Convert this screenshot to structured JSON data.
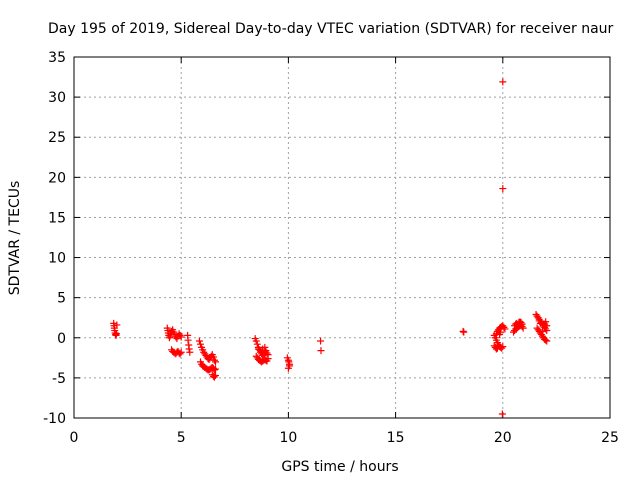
{
  "chart_data": {
    "type": "scatter",
    "title": "Day 195 of 2019, Sidereal Day-to-day VTEC variation (SDTVAR) for receiver naur",
    "xlabel": "GPS time / hours",
    "ylabel": "SDTVAR / TECUs",
    "xlim": [
      0,
      25
    ],
    "ylim": [
      -10,
      35
    ],
    "xticks": [
      0,
      5,
      10,
      15,
      20,
      25
    ],
    "yticks": [
      -10,
      -5,
      0,
      5,
      10,
      15,
      20,
      25,
      30,
      35
    ],
    "xtick_labels": [
      "0",
      "5",
      "10",
      "15",
      "20",
      "25"
    ],
    "ytick_labels": [
      "-10",
      "-5",
      "0",
      "5",
      "10",
      "15",
      "20",
      "25",
      "30",
      "35"
    ],
    "grid": true,
    "marker": "+",
    "series": [
      {
        "name": "SDTVAR",
        "color": "#ff0000",
        "points": [
          [
            1.85,
            1.8
          ],
          [
            1.87,
            1.5
          ],
          [
            1.88,
            1.2
          ],
          [
            1.9,
            0.9
          ],
          [
            1.92,
            0.6
          ],
          [
            1.94,
            0.4
          ],
          [
            1.96,
            0.3
          ],
          [
            1.98,
            0.5
          ],
          [
            2.0,
            1.6
          ],
          [
            4.35,
            1.2
          ],
          [
            4.38,
            0.9
          ],
          [
            4.4,
            0.6
          ],
          [
            4.42,
            0.3
          ],
          [
            4.45,
            0.0
          ],
          [
            4.48,
            0.2
          ],
          [
            4.5,
            0.5
          ],
          [
            4.55,
            0.8
          ],
          [
            4.6,
            1.0
          ],
          [
            4.65,
            0.7
          ],
          [
            4.7,
            0.4
          ],
          [
            4.75,
            0.1
          ],
          [
            4.8,
            -0.1
          ],
          [
            4.85,
            0.2
          ],
          [
            4.9,
            0.5
          ],
          [
            4.95,
            0.3
          ],
          [
            5.0,
            0.1
          ],
          [
            4.55,
            -1.5
          ],
          [
            4.6,
            -1.7
          ],
          [
            4.65,
            -1.8
          ],
          [
            4.7,
            -1.9
          ],
          [
            4.75,
            -2.0
          ],
          [
            4.8,
            -1.8
          ],
          [
            4.85,
            -1.7
          ],
          [
            4.9,
            -1.9
          ],
          [
            4.95,
            -2.0
          ],
          [
            5.0,
            -1.8
          ],
          [
            5.3,
            0.3
          ],
          [
            5.32,
            -0.3
          ],
          [
            5.35,
            -0.9
          ],
          [
            5.37,
            -1.4
          ],
          [
            5.4,
            -1.8
          ],
          [
            5.85,
            -0.4
          ],
          [
            5.9,
            -0.8
          ],
          [
            5.95,
            -1.2
          ],
          [
            6.0,
            -1.5
          ],
          [
            6.05,
            -1.8
          ],
          [
            6.1,
            -2.0
          ],
          [
            6.15,
            -2.2
          ],
          [
            6.2,
            -2.4
          ],
          [
            6.25,
            -2.6
          ],
          [
            6.3,
            -2.7
          ],
          [
            6.35,
            -2.5
          ],
          [
            6.4,
            -2.3
          ],
          [
            6.45,
            -2.1
          ],
          [
            6.5,
            -2.4
          ],
          [
            6.55,
            -2.8
          ],
          [
            6.6,
            -3.0
          ],
          [
            5.9,
            -3.0
          ],
          [
            5.95,
            -3.3
          ],
          [
            6.0,
            -3.5
          ],
          [
            6.05,
            -3.6
          ],
          [
            6.1,
            -3.7
          ],
          [
            6.15,
            -3.8
          ],
          [
            6.2,
            -3.9
          ],
          [
            6.25,
            -4.0
          ],
          [
            6.3,
            -4.0
          ],
          [
            6.35,
            -3.9
          ],
          [
            6.4,
            -3.8
          ],
          [
            6.45,
            -3.7
          ],
          [
            6.5,
            -3.8
          ],
          [
            6.55,
            -4.0
          ],
          [
            6.6,
            -3.9
          ],
          [
            6.45,
            -4.6
          ],
          [
            6.5,
            -4.8
          ],
          [
            6.55,
            -4.9
          ],
          [
            6.6,
            -4.7
          ],
          [
            8.45,
            -0.1
          ],
          [
            8.5,
            -0.4
          ],
          [
            8.55,
            -0.8
          ],
          [
            8.6,
            -1.2
          ],
          [
            8.65,
            -1.5
          ],
          [
            8.7,
            -1.8
          ],
          [
            8.75,
            -2.0
          ],
          [
            8.8,
            -2.2
          ],
          [
            8.85,
            -2.0
          ],
          [
            8.9,
            -1.8
          ],
          [
            8.95,
            -1.6
          ],
          [
            9.0,
            -1.9
          ],
          [
            9.05,
            -2.1
          ],
          [
            8.5,
            -2.3
          ],
          [
            8.55,
            -2.5
          ],
          [
            8.6,
            -2.7
          ],
          [
            8.65,
            -2.8
          ],
          [
            8.7,
            -2.9
          ],
          [
            8.75,
            -3.0
          ],
          [
            8.8,
            -2.9
          ],
          [
            8.85,
            -2.8
          ],
          [
            8.9,
            -2.7
          ],
          [
            8.95,
            -2.8
          ],
          [
            9.0,
            -2.9
          ],
          [
            9.05,
            -2.6
          ],
          [
            8.6,
            -1.4
          ],
          [
            8.7,
            -1.6
          ],
          [
            8.8,
            -1.4
          ],
          [
            8.9,
            -1.2
          ],
          [
            9.95,
            -2.5
          ],
          [
            10.0,
            -2.8
          ],
          [
            10.02,
            -3.0
          ],
          [
            10.05,
            -3.3
          ],
          [
            10.0,
            -3.8
          ],
          [
            10.05,
            -3.5
          ],
          [
            11.5,
            -0.4
          ],
          [
            11.52,
            -1.6
          ],
          [
            18.15,
            0.8
          ],
          [
            18.18,
            0.7
          ],
          [
            19.6,
            0.3
          ],
          [
            19.65,
            0.0
          ],
          [
            19.7,
            -0.3
          ],
          [
            19.75,
            -0.6
          ],
          [
            19.8,
            -0.9
          ],
          [
            19.85,
            -1.1
          ],
          [
            19.9,
            -1.2
          ],
          [
            19.95,
            -1.3
          ],
          [
            20.0,
            -1.1
          ],
          [
            19.6,
            -1.0
          ],
          [
            19.65,
            -1.2
          ],
          [
            19.7,
            -1.4
          ],
          [
            19.75,
            -1.3
          ],
          [
            19.7,
            0.5
          ],
          [
            19.75,
            0.8
          ],
          [
            19.8,
            1.0
          ],
          [
            19.85,
            1.2
          ],
          [
            19.9,
            1.3
          ],
          [
            19.95,
            1.4
          ],
          [
            20.0,
            1.5
          ],
          [
            20.05,
            1.3
          ],
          [
            20.1,
            1.1
          ],
          [
            19.85,
            0.4
          ],
          [
            19.9,
            0.7
          ],
          [
            19.98,
            -9.5
          ],
          [
            20.0,
            18.6
          ],
          [
            20.0,
            31.9
          ],
          [
            20.5,
            0.7
          ],
          [
            20.55,
            0.9
          ],
          [
            20.6,
            1.1
          ],
          [
            20.65,
            1.2
          ],
          [
            20.7,
            1.3
          ],
          [
            20.75,
            1.4
          ],
          [
            20.8,
            1.5
          ],
          [
            20.85,
            1.6
          ],
          [
            20.9,
            1.4
          ],
          [
            20.95,
            1.2
          ],
          [
            20.55,
            1.5
          ],
          [
            20.6,
            1.7
          ],
          [
            20.65,
            1.8
          ],
          [
            20.7,
            1.6
          ],
          [
            20.75,
            1.9
          ],
          [
            20.8,
            2.0
          ],
          [
            20.85,
            1.9
          ],
          [
            20.9,
            1.7
          ],
          [
            21.55,
            2.9
          ],
          [
            21.6,
            2.7
          ],
          [
            21.65,
            2.5
          ],
          [
            21.7,
            2.3
          ],
          [
            21.75,
            2.1
          ],
          [
            21.8,
            1.9
          ],
          [
            21.85,
            1.7
          ],
          [
            21.9,
            1.5
          ],
          [
            21.95,
            1.3
          ],
          [
            22.0,
            1.1
          ],
          [
            22.05,
            0.9
          ],
          [
            21.6,
            1.2
          ],
          [
            21.65,
            1.0
          ],
          [
            21.7,
            0.8
          ],
          [
            21.75,
            0.6
          ],
          [
            21.8,
            0.4
          ],
          [
            21.85,
            0.2
          ],
          [
            21.9,
            0.0
          ],
          [
            21.95,
            -0.2
          ],
          [
            22.0,
            -0.3
          ],
          [
            22.05,
            -0.4
          ],
          [
            21.7,
            2.1
          ],
          [
            21.75,
            1.8
          ],
          [
            21.85,
            0.8
          ],
          [
            21.95,
            1.7
          ],
          [
            22.0,
            2.0
          ],
          [
            22.05,
            1.5
          ]
        ]
      }
    ]
  }
}
